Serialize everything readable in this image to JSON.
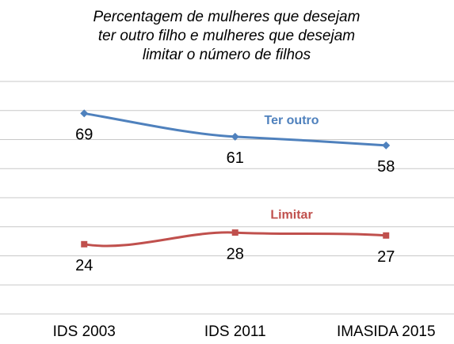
{
  "chart_data": {
    "type": "line",
    "title": [
      "Percentagem de mulheres que desejam",
      "ter outro filho e mulheres que desejam",
      "limitar o número de filhos"
    ],
    "categories": [
      "IDS 2003",
      "IDS 2011",
      "IMASIDA 2015"
    ],
    "series": [
      {
        "name": "Ter outro",
        "color": "#4f81bd",
        "marker": "diamond",
        "values": [
          69,
          61,
          58
        ]
      },
      {
        "name": "Limitar",
        "color": "#c0504d",
        "marker": "square",
        "values": [
          24,
          28,
          27
        ]
      }
    ],
    "ylim": [
      0,
      80
    ],
    "yticks": [
      0,
      10,
      20,
      30,
      40,
      50,
      60,
      70,
      80
    ],
    "grid": true
  }
}
